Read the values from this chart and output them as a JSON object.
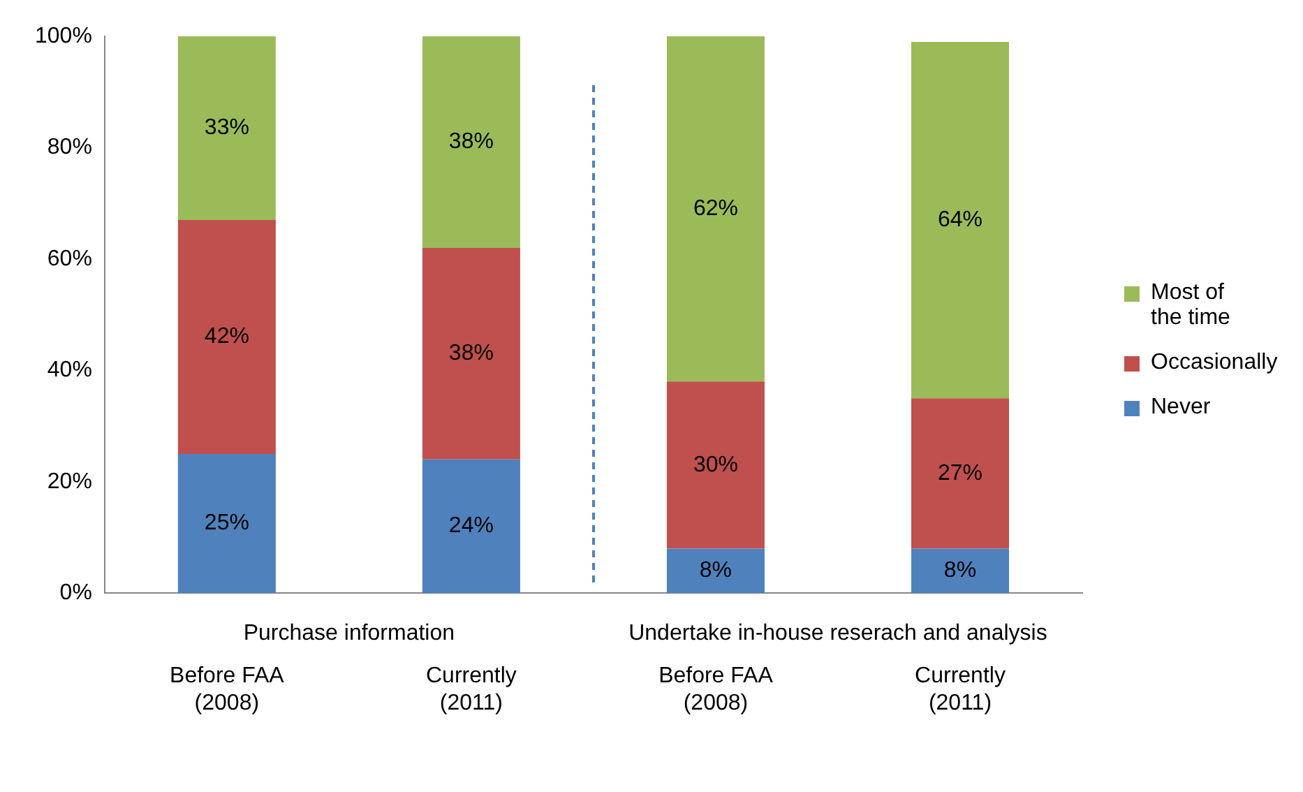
{
  "chart_data": {
    "type": "bar",
    "stacked": true,
    "categories": [
      "Before FAA (2008)",
      "Currently (2011)",
      "Before FAA (2008)",
      "Currently (2011)"
    ],
    "series": [
      {
        "name": "Never",
        "color": "#4f81bd",
        "values": [
          25,
          24,
          8,
          8
        ],
        "value_labels": [
          "25%",
          "24%",
          "8%",
          "8%"
        ]
      },
      {
        "name": "Occasionally",
        "color": "#c0504d",
        "values": [
          42,
          38,
          30,
          27
        ],
        "value_labels": [
          "42%",
          "38%",
          "30%",
          "27%"
        ]
      },
      {
        "name": "Most of the time",
        "color": "#9bbb59",
        "values": [
          33,
          38,
          62,
          64
        ],
        "value_labels": [
          "33%",
          "38%",
          "62%",
          "64%"
        ]
      }
    ],
    "ylim": [
      0,
      100
    ],
    "yticks": [
      {
        "value": 0,
        "label": "0%"
      },
      {
        "value": 20,
        "label": "20%"
      },
      {
        "value": 40,
        "label": "40%"
      },
      {
        "value": 60,
        "label": "60%"
      },
      {
        "value": 80,
        "label": "80%"
      },
      {
        "value": 100,
        "label": "100%"
      }
    ],
    "grid": false,
    "legend": "right",
    "annotations": [
      "Purchase information",
      "Undertake in-house reserach and analysis"
    ]
  }
}
